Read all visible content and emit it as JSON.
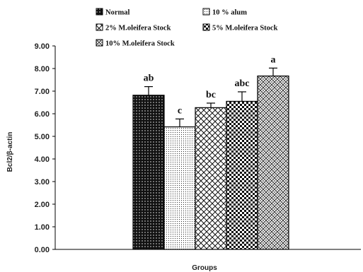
{
  "chart_data": {
    "type": "bar",
    "xlabel": "Groups",
    "ylabel": "Bcl2/β-actin",
    "ylim": [
      0,
      9
    ],
    "y_ticks": [
      "0.00",
      "1.00",
      "2.00",
      "3.00",
      "4.00",
      "5.00",
      "6.00",
      "7.00",
      "8.00",
      "9.00"
    ],
    "grid": false,
    "legend_position": "top",
    "series": [
      {
        "name": "Normal",
        "value": 6.82,
        "error": 0.38,
        "label": "ab",
        "pattern": "dots-dark"
      },
      {
        "name": "10 % alum",
        "value": 5.42,
        "error": 0.35,
        "label": "c",
        "pattern": "dots-light"
      },
      {
        "name": "2% M.oleifera Stock",
        "value": 6.27,
        "error": 0.2,
        "label": "bc",
        "pattern": "diamond-grid"
      },
      {
        "name": "5% M.oleifera Stock",
        "value": 6.55,
        "error": 0.42,
        "label": "abc",
        "pattern": "checker"
      },
      {
        "name": "10% M.oleifera Stock",
        "value": 7.67,
        "error": 0.35,
        "label": "a",
        "pattern": "zigzag"
      }
    ]
  },
  "colors": {
    "ink": "#111111",
    "bar_border": "#000000",
    "background": "#ffffff"
  }
}
